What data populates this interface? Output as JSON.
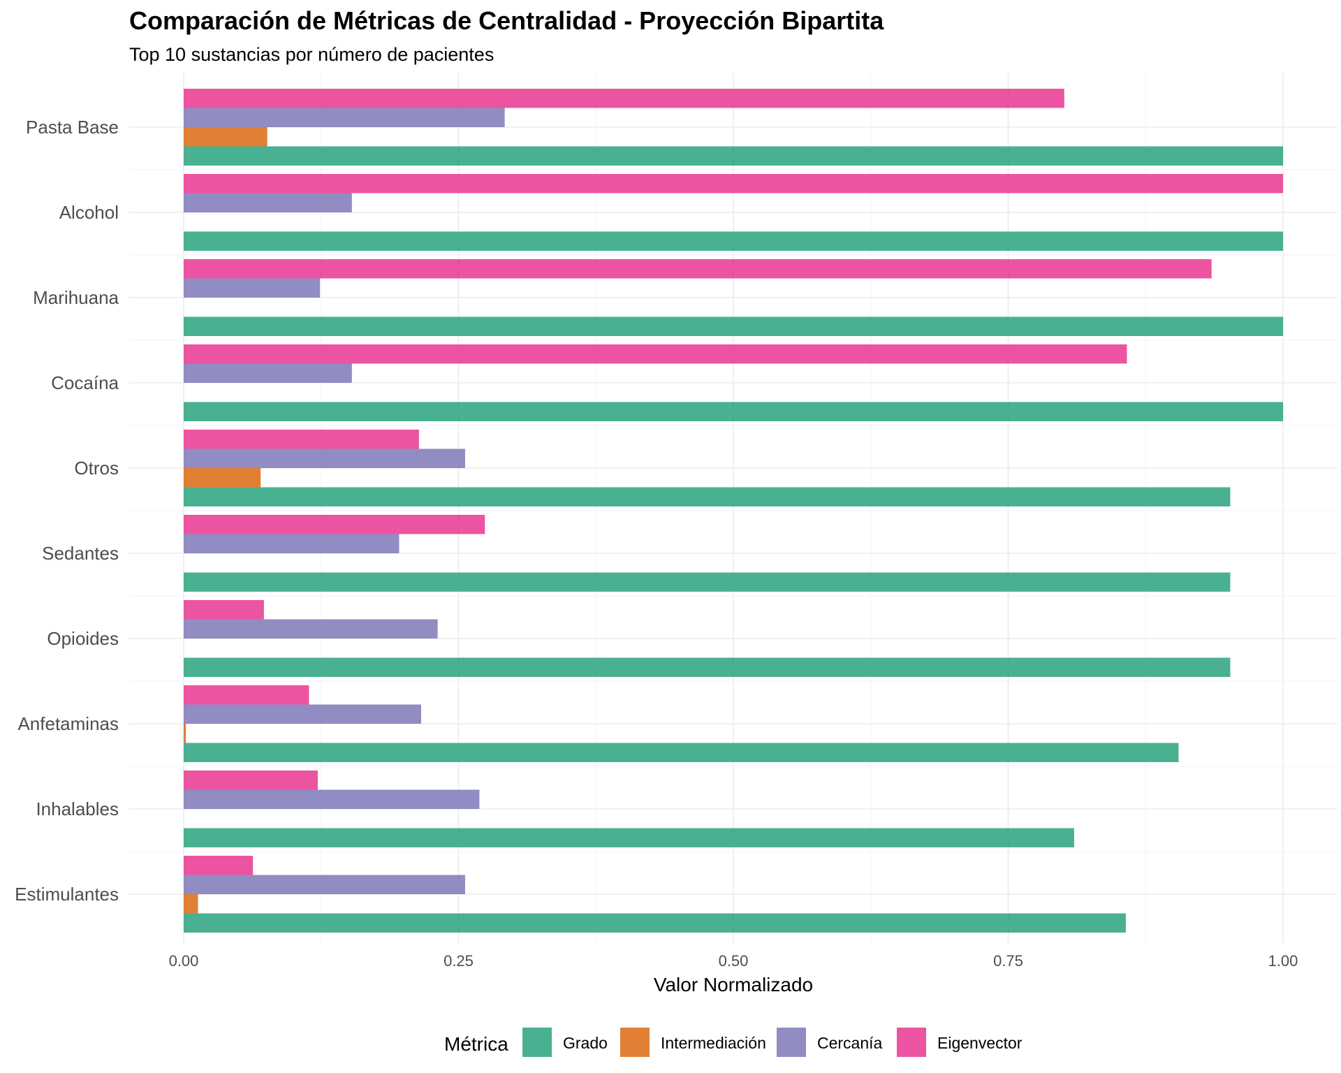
{
  "chart_data": {
    "type": "bar",
    "orientation": "horizontal",
    "title": "Comparación de Métricas de Centralidad - Proyección Bipartita",
    "subtitle": "Top 10 sustancias por número de pacientes",
    "xlabel": "Valor Normalizado",
    "ylabel": "",
    "xlim": [
      -0.05,
      1.05
    ],
    "xticks": [
      0.0,
      0.25,
      0.5,
      0.75,
      1.0
    ],
    "xtick_labels": [
      "0.00",
      "0.25",
      "0.50",
      "0.75",
      "1.00"
    ],
    "grid": true,
    "legend": {
      "title": "Métrica",
      "position": "bottom"
    },
    "categories": [
      "Pasta Base",
      "Alcohol",
      "Marihuana",
      "Cocaína",
      "Otros",
      "Sedantes",
      "Opioides",
      "Anfetaminas",
      "Inhalables",
      "Estimulantes"
    ],
    "series": [
      {
        "name": "Grado",
        "color": "#1b9e77",
        "values": [
          1.0,
          1.0,
          1.0,
          1.0,
          0.952,
          0.952,
          0.952,
          0.905,
          0.81,
          0.857
        ]
      },
      {
        "name": "Intermediación",
        "color": "#d95f02",
        "values": [
          0.076,
          0.0,
          0.0,
          0.0,
          0.07,
          0.0,
          0.0,
          0.002,
          0.0,
          0.013
        ]
      },
      {
        "name": "Cercanía",
        "color": "#7570b3",
        "values": [
          0.292,
          0.153,
          0.124,
          0.153,
          0.256,
          0.196,
          0.231,
          0.216,
          0.269,
          0.256
        ]
      },
      {
        "name": "Eigenvector",
        "color": "#e7298a",
        "values": [
          0.801,
          1.0,
          0.935,
          0.858,
          0.214,
          0.274,
          0.073,
          0.114,
          0.122,
          0.063
        ]
      }
    ]
  }
}
